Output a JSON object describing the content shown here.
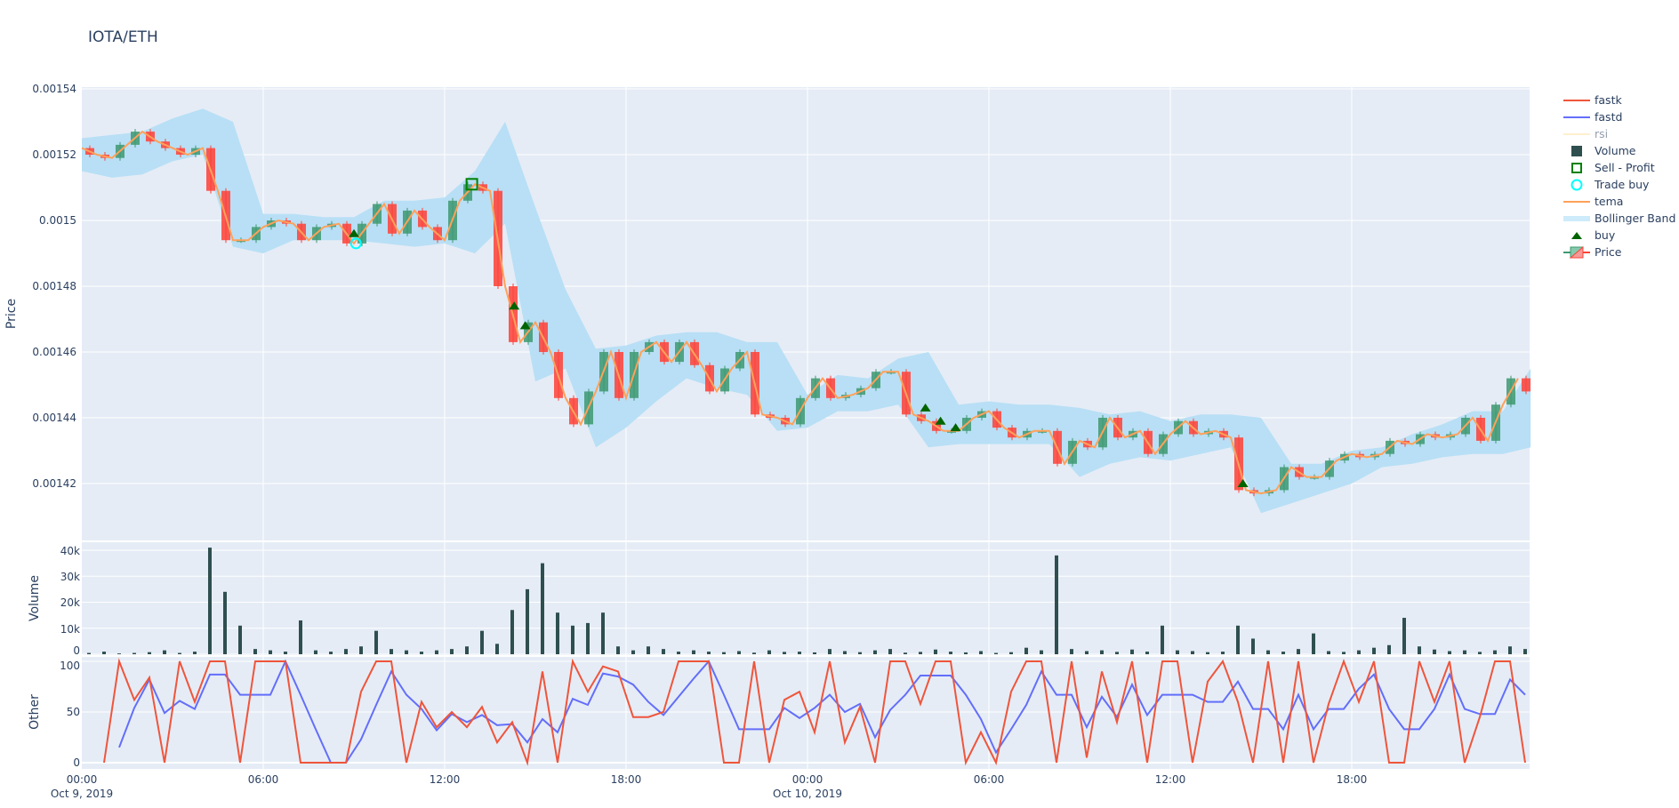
{
  "title": "IOTA/ETH",
  "legend": {
    "items": [
      {
        "label": "fastk",
        "color": "#EF553B",
        "symbol": "line"
      },
      {
        "label": "fastd",
        "color": "#636EFA",
        "symbol": "line"
      },
      {
        "label": "rsi",
        "color": "#FFE8B0",
        "symbol": "line",
        "hidden": true
      },
      {
        "label": "Volume",
        "color": "#2F4F4F",
        "symbol": "square"
      },
      {
        "label": "Sell - Profit",
        "color": "#008000",
        "symbol": "square-open"
      },
      {
        "label": "Trade buy",
        "color": "#00FFFF",
        "symbol": "circle-open"
      },
      {
        "label": "tema",
        "color": "#FFA15A",
        "symbol": "line"
      },
      {
        "label": "Bollinger Band",
        "color": "#B8E0F6",
        "symbol": "band"
      },
      {
        "label": "buy",
        "color": "#006400",
        "symbol": "triangle-up"
      },
      {
        "label": "Price",
        "color": "#3D9970",
        "symbol": "candle"
      }
    ]
  },
  "colors": {
    "background": "#E5ECF6",
    "grid": "#FFFFFF",
    "increasing": "#3D9970",
    "decreasing": "#FF4136",
    "band": "#B8DFF5",
    "tema": "#FFA15A",
    "volume": "#2F4F4F",
    "fastk": "#EF553B",
    "fastd": "#636EFA"
  },
  "chart_data": {
    "type": "candlestick",
    "pair": "IOTA/ETH",
    "x_axis": {
      "ticks": [
        "00:00",
        "06:00",
        "12:00",
        "18:00",
        "00:00",
        "06:00",
        "12:00",
        "18:00"
      ],
      "tick_times": [
        "2019-10-09T00:00",
        "2019-10-09T06:00",
        "2019-10-09T12:00",
        "2019-10-09T18:00",
        "2019-10-10T00:00",
        "2019-10-10T06:00",
        "2019-10-10T12:00",
        "2019-10-10T18:00"
      ],
      "date_labels": [
        "Oct 9, 2019",
        "",
        "",
        "",
        "Oct 10, 2019",
        "",
        "",
        ""
      ],
      "range": [
        "2019-10-09T00:00",
        "2019-10-10T23:55"
      ]
    },
    "panels": {
      "price": {
        "ylabel": "Price",
        "ylim": [
          0.001403,
          0.00154
        ],
        "ticks": [
          "0.00154",
          "0.00152",
          "0.0015",
          "0.00148",
          "0.00146",
          "0.00144",
          "0.00142"
        ],
        "tick_values": [
          0.00154,
          0.00152,
          0.0015,
          0.00148,
          0.00146,
          0.00144,
          0.00142
        ]
      },
      "volume": {
        "ylabel": "Volume",
        "ylim": [
          0,
          42000
        ],
        "ticks": [
          "40k",
          "30k",
          "20k",
          "10k",
          "0"
        ],
        "tick_values": [
          40000,
          30000,
          20000,
          10000,
          0
        ]
      },
      "other": {
        "ylabel": "Other",
        "ylim": [
          -5,
          103
        ],
        "ticks": [
          "100",
          "50",
          "0"
        ],
        "tick_values": [
          100,
          50,
          0
        ]
      }
    },
    "x": [
      "2019-10-09T00:00",
      "2019-10-09T00:30",
      "2019-10-09T01:00",
      "2019-10-09T01:30",
      "2019-10-09T02:00",
      "2019-10-09T02:30",
      "2019-10-09T03:00",
      "2019-10-09T03:30",
      "2019-10-09T04:00",
      "2019-10-09T04:30",
      "2019-10-09T05:00",
      "2019-10-09T05:30",
      "2019-10-09T06:00",
      "2019-10-09T06:30",
      "2019-10-09T07:00",
      "2019-10-09T07:30",
      "2019-10-09T08:00",
      "2019-10-09T08:30",
      "2019-10-09T09:00",
      "2019-10-09T09:30",
      "2019-10-09T10:00",
      "2019-10-09T10:30",
      "2019-10-09T11:00",
      "2019-10-09T11:30",
      "2019-10-09T12:00",
      "2019-10-09T12:30",
      "2019-10-09T13:00",
      "2019-10-09T13:30",
      "2019-10-09T14:00",
      "2019-10-09T14:30",
      "2019-10-09T15:00",
      "2019-10-09T15:30",
      "2019-10-09T16:00",
      "2019-10-09T16:30",
      "2019-10-09T17:00",
      "2019-10-09T17:30",
      "2019-10-09T18:00",
      "2019-10-09T18:30",
      "2019-10-09T19:00",
      "2019-10-09T19:30",
      "2019-10-09T20:00",
      "2019-10-09T20:30",
      "2019-10-09T21:00",
      "2019-10-09T21:30",
      "2019-10-09T22:00",
      "2019-10-09T22:30",
      "2019-10-09T23:00",
      "2019-10-09T23:30",
      "2019-10-10T00:00",
      "2019-10-10T00:30",
      "2019-10-10T01:00",
      "2019-10-10T01:30",
      "2019-10-10T02:00",
      "2019-10-10T02:30",
      "2019-10-10T03:00",
      "2019-10-10T03:30",
      "2019-10-10T04:00",
      "2019-10-10T04:30",
      "2019-10-10T05:00",
      "2019-10-10T05:30",
      "2019-10-10T06:00",
      "2019-10-10T06:30",
      "2019-10-10T07:00",
      "2019-10-10T07:30",
      "2019-10-10T08:00",
      "2019-10-10T08:30",
      "2019-10-10T09:00",
      "2019-10-10T09:30",
      "2019-10-10T10:00",
      "2019-10-10T10:30",
      "2019-10-10T11:00",
      "2019-10-10T11:30",
      "2019-10-10T12:00",
      "2019-10-10T12:30",
      "2019-10-10T13:00",
      "2019-10-10T13:30",
      "2019-10-10T14:00",
      "2019-10-10T14:30",
      "2019-10-10T15:00",
      "2019-10-10T15:30",
      "2019-10-10T16:00",
      "2019-10-10T16:30",
      "2019-10-10T17:00",
      "2019-10-10T17:30",
      "2019-10-10T18:00",
      "2019-10-10T18:30",
      "2019-10-10T19:00",
      "2019-10-10T19:30",
      "2019-10-10T20:00",
      "2019-10-10T20:30",
      "2019-10-10T21:00",
      "2019-10-10T21:30",
      "2019-10-10T22:00",
      "2019-10-10T22:30",
      "2019-10-10T23:00",
      "2019-10-10T23:30"
    ],
    "tema": [
      0.001522,
      0.00152,
      0.001519,
      0.001523,
      0.001527,
      0.001524,
      0.001522,
      0.00152,
      0.001522,
      0.001509,
      0.001494,
      0.001494,
      0.001498,
      0.0015,
      0.001499,
      0.001494,
      0.001498,
      0.001499,
      0.001493,
      0.001499,
      0.001505,
      0.001496,
      0.001503,
      0.001498,
      0.001494,
      0.001506,
      0.001511,
      0.001509,
      0.00148,
      0.001463,
      0.001469,
      0.00146,
      0.001446,
      0.001438,
      0.001448,
      0.00146,
      0.001446,
      0.00146,
      0.001463,
      0.001457,
      0.001463,
      0.001456,
      0.001448,
      0.001455,
      0.00146,
      0.001441,
      0.00144,
      0.001438,
      0.001446,
      0.001452,
      0.001446,
      0.001447,
      0.001449,
      0.001454,
      0.001454,
      0.001441,
      0.001439,
      0.001436,
      0.001436,
      0.00144,
      0.001442,
      0.001437,
      0.001434,
      0.001436,
      0.001436,
      0.001426,
      0.001433,
      0.001431,
      0.00144,
      0.001434,
      0.001436,
      0.001429,
      0.001435,
      0.001439,
      0.001435,
      0.001436,
      0.001434,
      0.001418,
      0.001417,
      0.001418,
      0.001425,
      0.001422,
      0.001422,
      0.001427,
      0.001429,
      0.001428,
      0.001429,
      0.001433,
      0.001432,
      0.001435,
      0.001434,
      0.001435,
      0.00144,
      0.001433,
      0.001444,
      0.001452
    ],
    "close": [
      0.00152,
      0.001519,
      0.001523,
      0.001527,
      0.001524,
      0.001522,
      0.00152,
      0.001522,
      0.001509,
      0.001494,
      0.001494,
      0.001498,
      0.0015,
      0.001499,
      0.001494,
      0.001498,
      0.001499,
      0.001493,
      0.001499,
      0.001505,
      0.001496,
      0.001503,
      0.001498,
      0.001494,
      0.001506,
      0.001511,
      0.001509,
      0.00148,
      0.001463,
      0.001469,
      0.00146,
      0.001446,
      0.001438,
      0.001448,
      0.00146,
      0.001446,
      0.00146,
      0.001463,
      0.001457,
      0.001463,
      0.001456,
      0.001448,
      0.001455,
      0.00146,
      0.001441,
      0.00144,
      0.001438,
      0.001446,
      0.001452,
      0.001446,
      0.001447,
      0.001449,
      0.001454,
      0.001454,
      0.001441,
      0.001439,
      0.001436,
      0.001436,
      0.00144,
      0.001442,
      0.001437,
      0.001434,
      0.001436,
      0.001436,
      0.001426,
      0.001433,
      0.001431,
      0.00144,
      0.001434,
      0.001436,
      0.001429,
      0.001435,
      0.001439,
      0.001435,
      0.001436,
      0.001434,
      0.001418,
      0.001417,
      0.001418,
      0.001425,
      0.001422,
      0.001422,
      0.001427,
      0.001429,
      0.001428,
      0.001429,
      0.001433,
      0.001432,
      0.001435,
      0.001434,
      0.001435,
      0.00144,
      0.001433,
      0.001444,
      0.001452,
      0.001448
    ],
    "bollinger": {
      "x": [
        "2019-10-09T00:00",
        "2019-10-09T01:00",
        "2019-10-09T02:00",
        "2019-10-09T03:00",
        "2019-10-09T04:00",
        "2019-10-09T05:00",
        "2019-10-09T06:00",
        "2019-10-09T07:00",
        "2019-10-09T08:00",
        "2019-10-09T09:00",
        "2019-10-09T10:00",
        "2019-10-09T11:00",
        "2019-10-09T12:00",
        "2019-10-09T13:00",
        "2019-10-09T14:00",
        "2019-10-09T15:00",
        "2019-10-09T16:00",
        "2019-10-09T17:00",
        "2019-10-09T18:00",
        "2019-10-09T19:00",
        "2019-10-09T20:00",
        "2019-10-09T21:00",
        "2019-10-09T22:00",
        "2019-10-09T23:00",
        "2019-10-10T00:00",
        "2019-10-10T01:00",
        "2019-10-10T02:00",
        "2019-10-10T03:00",
        "2019-10-10T04:00",
        "2019-10-10T05:00",
        "2019-10-10T06:00",
        "2019-10-10T07:00",
        "2019-10-10T08:00",
        "2019-10-10T09:00",
        "2019-10-10T10:00",
        "2019-10-10T11:00",
        "2019-10-10T12:00",
        "2019-10-10T13:00",
        "2019-10-10T14:00",
        "2019-10-10T15:00",
        "2019-10-10T16:00",
        "2019-10-10T17:00",
        "2019-10-10T18:00",
        "2019-10-10T19:00",
        "2019-10-10T20:00",
        "2019-10-10T21:00",
        "2019-10-10T22:00",
        "2019-10-10T23:00",
        "2019-10-10T23:55"
      ],
      "upper": [
        0.001525,
        0.001526,
        0.001527,
        0.001531,
        0.001534,
        0.00153,
        0.001502,
        0.001502,
        0.001501,
        0.001501,
        0.001506,
        0.001506,
        0.001507,
        0.001515,
        0.00153,
        0.001504,
        0.001479,
        0.001461,
        0.001462,
        0.001465,
        0.001466,
        0.001466,
        0.001463,
        0.001463,
        0.001447,
        0.001453,
        0.001452,
        0.001458,
        0.00146,
        0.001444,
        0.001445,
        0.001444,
        0.001444,
        0.001443,
        0.001441,
        0.001442,
        0.001439,
        0.001441,
        0.001441,
        0.00144,
        0.001426,
        0.001426,
        0.00143,
        0.001431,
        0.001435,
        0.001438,
        0.001442,
        0.001442,
        0.001455
      ],
      "lower": [
        0.001515,
        0.001513,
        0.001514,
        0.001518,
        0.00152,
        0.001492,
        0.00149,
        0.001494,
        0.001494,
        0.001494,
        0.001493,
        0.001492,
        0.001493,
        0.00149,
        0.001499,
        0.001451,
        0.001455,
        0.001431,
        0.001437,
        0.001445,
        0.001452,
        0.001449,
        0.001447,
        0.001436,
        0.001437,
        0.001442,
        0.001442,
        0.001444,
        0.001431,
        0.001432,
        0.001432,
        0.001432,
        0.001432,
        0.001422,
        0.001426,
        0.001428,
        0.001427,
        0.001429,
        0.001431,
        0.001411,
        0.001414,
        0.001417,
        0.00142,
        0.001425,
        0.001426,
        0.001428,
        0.001429,
        0.001429,
        0.001431
      ]
    },
    "buy_signals": [
      {
        "x": "2019-10-09T09:00",
        "y": 0.001496
      },
      {
        "x": "2019-10-09T14:18",
        "y": 0.001474
      },
      {
        "x": "2019-10-09T14:40",
        "y": 0.001468
      },
      {
        "x": "2019-10-10T03:54",
        "y": 0.001443
      },
      {
        "x": "2019-10-10T04:24",
        "y": 0.001439
      },
      {
        "x": "2019-10-10T04:54",
        "y": 0.001437
      },
      {
        "x": "2019-10-10T14:24",
        "y": 0.00142
      }
    ],
    "trade_buys": [
      {
        "x": "2019-10-09T09:04",
        "y": 0.001493
      }
    ],
    "sell_profit": [
      {
        "x": "2019-10-09T12:54",
        "y": 0.001511
      }
    ],
    "volume": [
      500,
      1000,
      300,
      500,
      800,
      1500,
      500,
      1000,
      41000,
      24000,
      11000,
      2000,
      1500,
      1000,
      13000,
      1500,
      1000,
      2000,
      3000,
      9000,
      2000,
      1500,
      1000,
      1500,
      2000,
      3000,
      9000,
      4000,
      17000,
      25000,
      35000,
      16000,
      11000,
      12000,
      16000,
      3000,
      1500,
      3000,
      2000,
      1000,
      1500,
      1000,
      800,
      1200,
      600,
      1500,
      900,
      1000,
      700,
      2000,
      1200,
      800,
      1500,
      2000,
      600,
      900,
      1800,
      1000,
      700,
      1200,
      500,
      800,
      2500,
      1500,
      38000,
      2000,
      1200,
      1500,
      900,
      1800,
      1000,
      11000,
      1500,
      1200,
      800,
      1000,
      11000,
      6000,
      1500,
      1000,
      2000,
      8000,
      1200,
      900,
      1500,
      2500,
      3500,
      14000,
      3000,
      1800,
      1200,
      1500,
      900,
      1500,
      3000,
      2000
    ],
    "fastk": [
      null,
      0,
      100,
      62,
      84,
      0,
      100,
      60,
      100,
      100,
      0,
      100,
      100,
      100,
      0,
      0,
      0,
      0,
      70,
      100,
      100,
      0,
      60,
      35,
      50,
      35,
      55,
      20,
      40,
      0,
      90,
      0,
      100,
      70,
      95,
      90,
      45,
      45,
      50,
      100,
      100,
      100,
      0,
      0,
      100,
      0,
      62,
      70,
      30,
      100,
      20,
      55,
      0,
      100,
      100,
      58,
      100,
      100,
      0,
      30,
      0,
      70,
      100,
      100,
      0,
      100,
      5,
      90,
      40,
      100,
      0,
      100,
      100,
      0,
      80,
      100,
      60,
      0,
      100,
      0,
      100,
      0,
      58,
      100,
      60,
      100,
      0,
      0,
      100,
      60,
      100,
      0,
      45,
      100,
      100,
      0
    ],
    "fastd": [
      null,
      null,
      15,
      54,
      82,
      49,
      61,
      53,
      87,
      87,
      67,
      67,
      67,
      100,
      67,
      33,
      0,
      0,
      23,
      57,
      90,
      67,
      53,
      32,
      48,
      40,
      47,
      37,
      38,
      20,
      43,
      30,
      63,
      57,
      88,
      85,
      77,
      60,
      47,
      65,
      83,
      100,
      67,
      33,
      33,
      33,
      54,
      44,
      54,
      67,
      50,
      58,
      25,
      52,
      67,
      86,
      86,
      86,
      67,
      43,
      10,
      33,
      57,
      90,
      67,
      67,
      35,
      65,
      45,
      77,
      47,
      67,
      67,
      67,
      60,
      60,
      80,
      53,
      53,
      33,
      67,
      33,
      53,
      53,
      73,
      87,
      53,
      33,
      33,
      53,
      87,
      53,
      48,
      48,
      82,
      67
    ]
  }
}
